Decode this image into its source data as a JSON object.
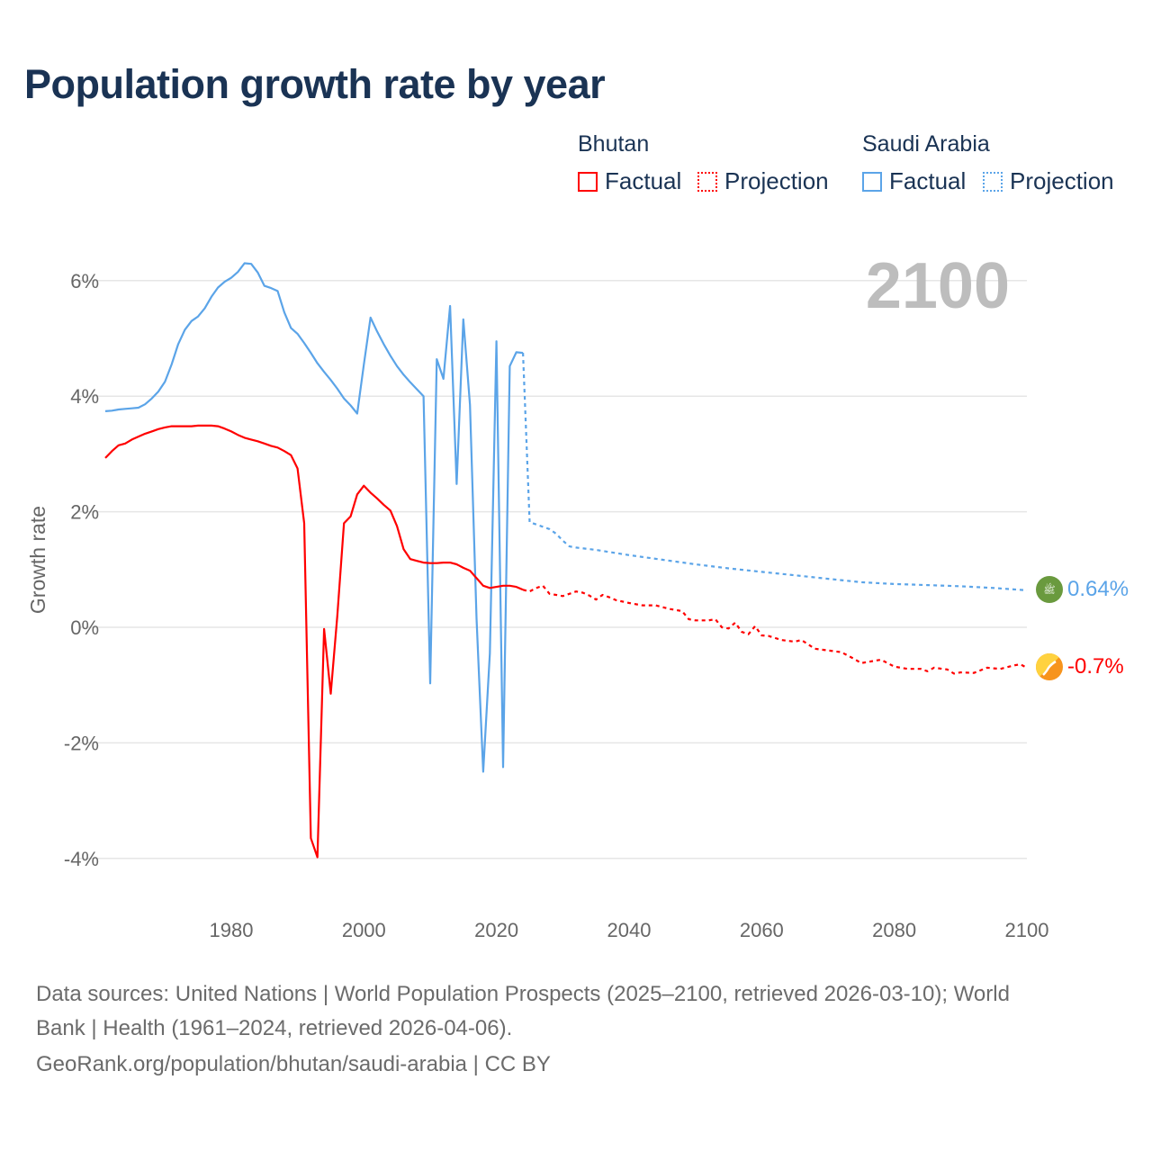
{
  "title": "Population growth rate by year",
  "legend": {
    "groups": [
      {
        "name": "Bhutan",
        "factual": "Factual",
        "projection": "Projection",
        "color": "#ff0000"
      },
      {
        "name": "Saudi Arabia",
        "factual": "Factual",
        "projection": "Projection",
        "color": "#5ba4e8"
      }
    ]
  },
  "year_display": "2100",
  "end_labels": {
    "saudi": "0.64%",
    "bhutan": "-0.7%"
  },
  "footer": {
    "line1": "Data sources: United Nations | World Population Prospects (2025–2100, retrieved 2026-03-10); World",
    "line2": "Bank | Health (1961–2024, retrieved 2026-04-06).",
    "line3": "GeoRank.org/population/bhutan/saudi-arabia | CC BY"
  },
  "chart_data": {
    "type": "line",
    "title": "Population growth rate by year",
    "ylabel": "Growth rate",
    "xlabel": "",
    "xlim": [
      1961,
      2100
    ],
    "ylim": [
      -4.6,
      6.9
    ],
    "xticks": [
      1980,
      2000,
      2020,
      2040,
      2060,
      2080,
      2100
    ],
    "xtick_labels": [
      "1980",
      "2000",
      "2020",
      "2040",
      "2060",
      "2080",
      "2100"
    ],
    "yticks": [
      6,
      4,
      2,
      0,
      -2,
      -4
    ],
    "ytick_labels": [
      "6%",
      "4%",
      "2%",
      "0%",
      "-2%",
      "-4%"
    ],
    "grid": true,
    "legend_position": "top-right",
    "series": [
      {
        "name": "Saudi Arabia Factual",
        "color": "#5ba4e8",
        "dash": false,
        "x": [
          1961,
          1962,
          1963,
          1964,
          1965,
          1966,
          1967,
          1968,
          1969,
          1970,
          1971,
          1972,
          1973,
          1974,
          1975,
          1976,
          1977,
          1978,
          1979,
          1980,
          1981,
          1982,
          1983,
          1984,
          1985,
          1986,
          1987,
          1988,
          1989,
          1990,
          1991,
          1992,
          1993,
          1994,
          1995,
          1996,
          1997,
          1998,
          1999,
          2000,
          2001,
          2002,
          2003,
          2004,
          2005,
          2006,
          2007,
          2008,
          2009,
          2010,
          2011,
          2012,
          2013,
          2014,
          2015,
          2016,
          2017,
          2018,
          2019,
          2020,
          2021,
          2022,
          2023,
          2024
        ],
        "y": [
          3.74,
          3.75,
          3.77,
          3.78,
          3.79,
          3.8,
          3.86,
          3.96,
          4.08,
          4.25,
          4.55,
          4.9,
          5.15,
          5.3,
          5.38,
          5.52,
          5.72,
          5.88,
          5.98,
          6.05,
          6.15,
          6.3,
          6.29,
          6.14,
          5.91,
          5.87,
          5.82,
          5.45,
          5.18,
          5.08,
          4.92,
          4.75,
          4.57,
          4.42,
          4.28,
          4.13,
          3.96,
          3.84,
          3.7,
          4.55,
          5.36,
          5.12,
          4.9,
          4.7,
          4.52,
          4.37,
          4.24,
          4.12,
          4.0,
          -0.97,
          4.64,
          4.3,
          5.56,
          2.48,
          5.33,
          3.85,
          0.15,
          -2.5,
          -0.45,
          4.95,
          -2.42,
          4.52,
          4.76,
          4.75
        ]
      },
      {
        "name": "Saudi Arabia Projection",
        "color": "#5ba4e8",
        "dash": true,
        "x": [
          2024,
          2025,
          2026,
          2027,
          2028,
          2029,
          2030,
          2031,
          2032,
          2035,
          2040,
          2045,
          2050,
          2055,
          2060,
          2065,
          2070,
          2075,
          2080,
          2085,
          2090,
          2095,
          2100
        ],
        "y": [
          4.75,
          1.82,
          1.78,
          1.74,
          1.7,
          1.62,
          1.5,
          1.4,
          1.38,
          1.34,
          1.25,
          1.17,
          1.09,
          1.02,
          0.96,
          0.9,
          0.84,
          0.78,
          0.75,
          0.73,
          0.71,
          0.68,
          0.64
        ]
      },
      {
        "name": "Bhutan Factual",
        "color": "#ff0000",
        "dash": false,
        "x": [
          1961,
          1962,
          1963,
          1964,
          1965,
          1966,
          1967,
          1968,
          1969,
          1970,
          1971,
          1972,
          1973,
          1974,
          1975,
          1976,
          1977,
          1978,
          1979,
          1980,
          1981,
          1982,
          1983,
          1984,
          1985,
          1986,
          1987,
          1988,
          1989,
          1990,
          1991,
          1992,
          1993,
          1994,
          1995,
          1996,
          1997,
          1998,
          1999,
          2000,
          2001,
          2002,
          2003,
          2004,
          2005,
          2006,
          2007,
          2008,
          2009,
          2010,
          2011,
          2012,
          2013,
          2014,
          2015,
          2016,
          2017,
          2018,
          2019,
          2020,
          2021,
          2022,
          2023,
          2024
        ],
        "y": [
          2.93,
          3.05,
          3.15,
          3.18,
          3.25,
          3.3,
          3.35,
          3.39,
          3.43,
          3.46,
          3.48,
          3.48,
          3.48,
          3.48,
          3.49,
          3.49,
          3.49,
          3.48,
          3.44,
          3.39,
          3.33,
          3.28,
          3.25,
          3.22,
          3.18,
          3.14,
          3.11,
          3.05,
          2.98,
          2.75,
          1.8,
          -3.65,
          -3.98,
          -0.03,
          -1.15,
          0.2,
          1.8,
          1.92,
          2.3,
          2.45,
          2.33,
          2.23,
          2.12,
          2.02,
          1.75,
          1.35,
          1.18,
          1.15,
          1.12,
          1.11,
          1.11,
          1.12,
          1.12,
          1.09,
          1.03,
          0.98,
          0.85,
          0.72,
          0.68,
          0.7,
          0.72,
          0.72,
          0.7,
          0.65
        ]
      },
      {
        "name": "Bhutan Projection",
        "color": "#ff0000",
        "dash": true,
        "x": [
          2024,
          2025,
          2026,
          2027,
          2028,
          2029,
          2030,
          2031,
          2032,
          2033,
          2034,
          2035,
          2036,
          2037,
          2038,
          2040,
          2042,
          2044,
          2046,
          2048,
          2049,
          2050,
          2052,
          2053,
          2054,
          2055,
          2056,
          2057,
          2058,
          2059,
          2060,
          2061,
          2063,
          2065,
          2066,
          2068,
          2070,
          2072,
          2074,
          2075,
          2077,
          2078,
          2080,
          2082,
          2084,
          2085,
          2086,
          2088,
          2089,
          2090,
          2092,
          2094,
          2095,
          2096,
          2098,
          2099,
          2100
        ],
        "y": [
          0.65,
          0.62,
          0.68,
          0.72,
          0.58,
          0.56,
          0.54,
          0.58,
          0.62,
          0.6,
          0.55,
          0.48,
          0.56,
          0.52,
          0.47,
          0.42,
          0.38,
          0.38,
          0.32,
          0.28,
          0.14,
          0.12,
          0.12,
          0.14,
          0.0,
          -0.02,
          0.08,
          -0.08,
          -0.12,
          0.02,
          -0.14,
          -0.15,
          -0.22,
          -0.25,
          -0.22,
          -0.37,
          -0.4,
          -0.43,
          -0.55,
          -0.62,
          -0.58,
          -0.56,
          -0.68,
          -0.72,
          -0.72,
          -0.76,
          -0.7,
          -0.73,
          -0.8,
          -0.78,
          -0.79,
          -0.7,
          -0.71,
          -0.72,
          -0.66,
          -0.64,
          -0.7
        ]
      }
    ]
  }
}
